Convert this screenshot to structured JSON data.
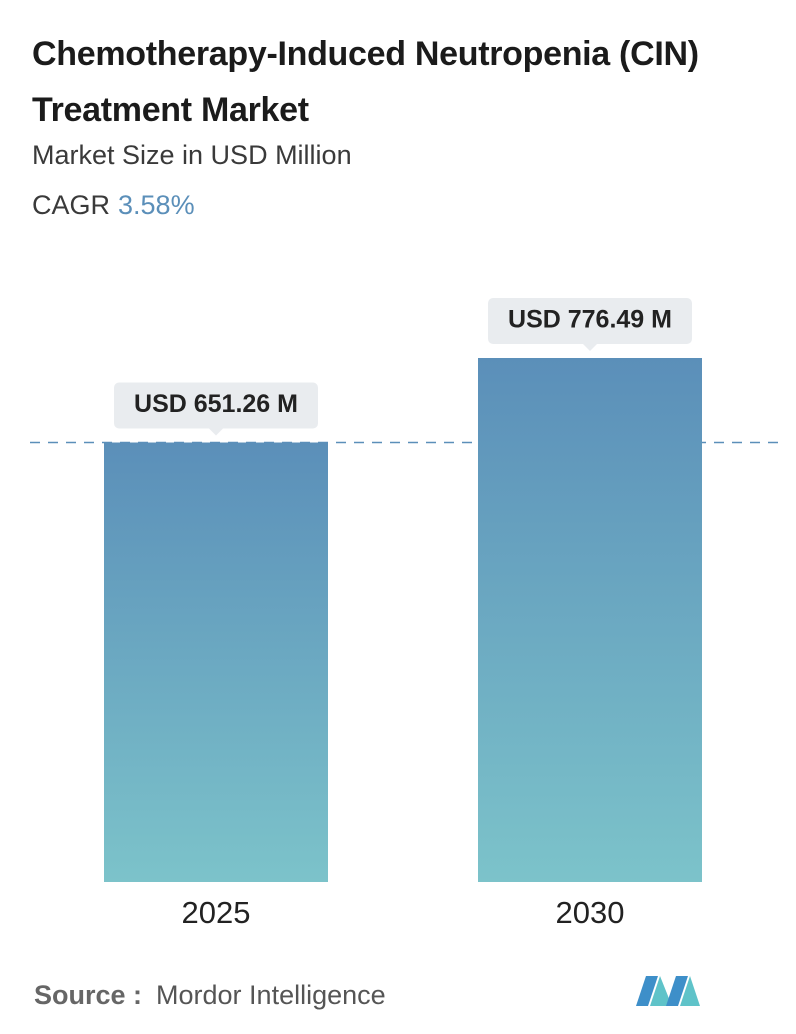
{
  "chart_data": {
    "type": "bar",
    "title": "Chemotherapy-Induced Neutropenia (CIN) Treatment Market",
    "subtitle": "Market Size in USD Million",
    "cagr_label": "CAGR",
    "cagr_value": "3.58%",
    "categories": [
      "2025",
      "2030"
    ],
    "values": [
      651.26,
      776.49
    ],
    "value_labels": [
      "USD 651.26 M",
      "USD 776.49 M"
    ],
    "colors": [
      "#5b8fb9",
      "#7cc3ca"
    ],
    "reference_line": true,
    "source_label": "Source :",
    "source": "Mordor Intelligence"
  }
}
